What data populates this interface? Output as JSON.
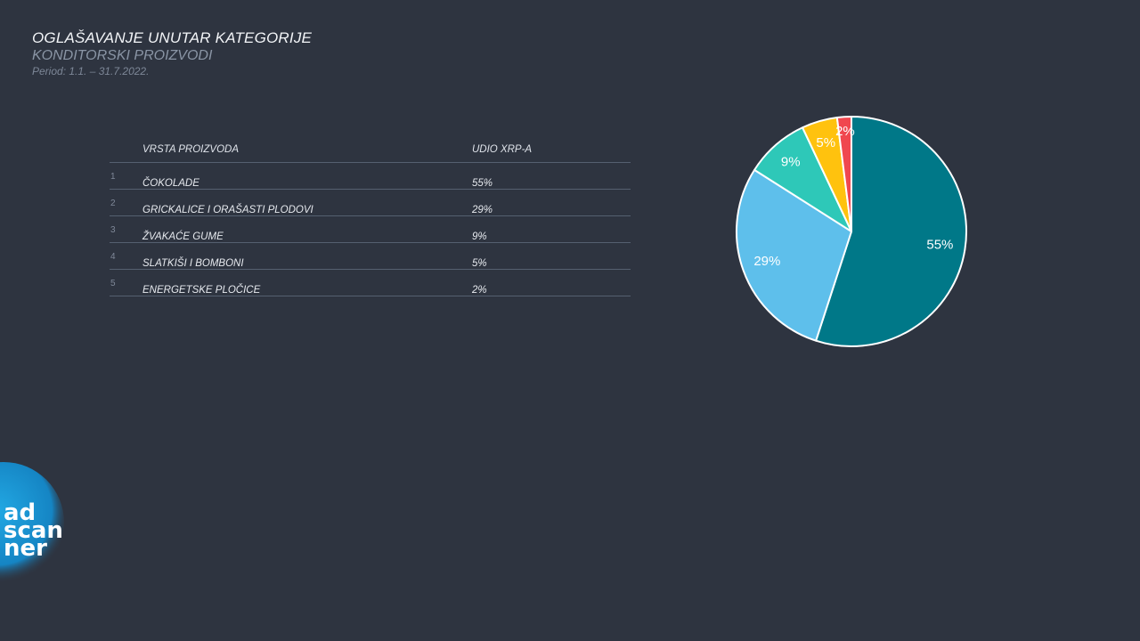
{
  "header": {
    "title": "OGLAŠAVANJE UNUTAR KATEGORIJE",
    "subtitle": "KONDITORSKI PROIZVODI",
    "period": "Period: 1.1. – 31.7.2022."
  },
  "table": {
    "columns": [
      "VRSTA PROIZVODA",
      "UDIO XRP-A"
    ],
    "rows": [
      {
        "rank": "1",
        "name": "ČOKOLADE",
        "value": "55%"
      },
      {
        "rank": "2",
        "name": "GRICKALICE I ORAŠASTI PLODOVI",
        "value": "29%"
      },
      {
        "rank": "3",
        "name": "ŽVAKAĆE GUME",
        "value": "9%"
      },
      {
        "rank": "4",
        "name": "SLATKIŠI I BOMBONI",
        "value": "5%"
      },
      {
        "rank": "5",
        "name": "ENERGETSKE PLOČICE",
        "value": "2%"
      }
    ]
  },
  "chart_data": {
    "type": "pie",
    "categories": [
      "ČOKOLADE",
      "GRICKALICE I ORAŠASTI PLODOVI",
      "ŽVAKAĆE GUME",
      "SLATKIŠI I BOMBONI",
      "ENERGETSKE PLOČICE"
    ],
    "values": [
      55,
      29,
      9,
      5,
      2
    ],
    "labels": [
      "55%",
      "29%",
      "9%",
      "5%",
      "2%"
    ],
    "colors": [
      "#007888",
      "#5ebfeb",
      "#2ec8b8",
      "#ffc20e",
      "#f0474f"
    ],
    "slice_border_color": "#ffffff",
    "start": "12 o'clock",
    "direction": "clockwise",
    "legend": "none"
  },
  "logo": {
    "lines": [
      "ad",
      "scan",
      "ner"
    ],
    "color": "#1e9bd7"
  }
}
